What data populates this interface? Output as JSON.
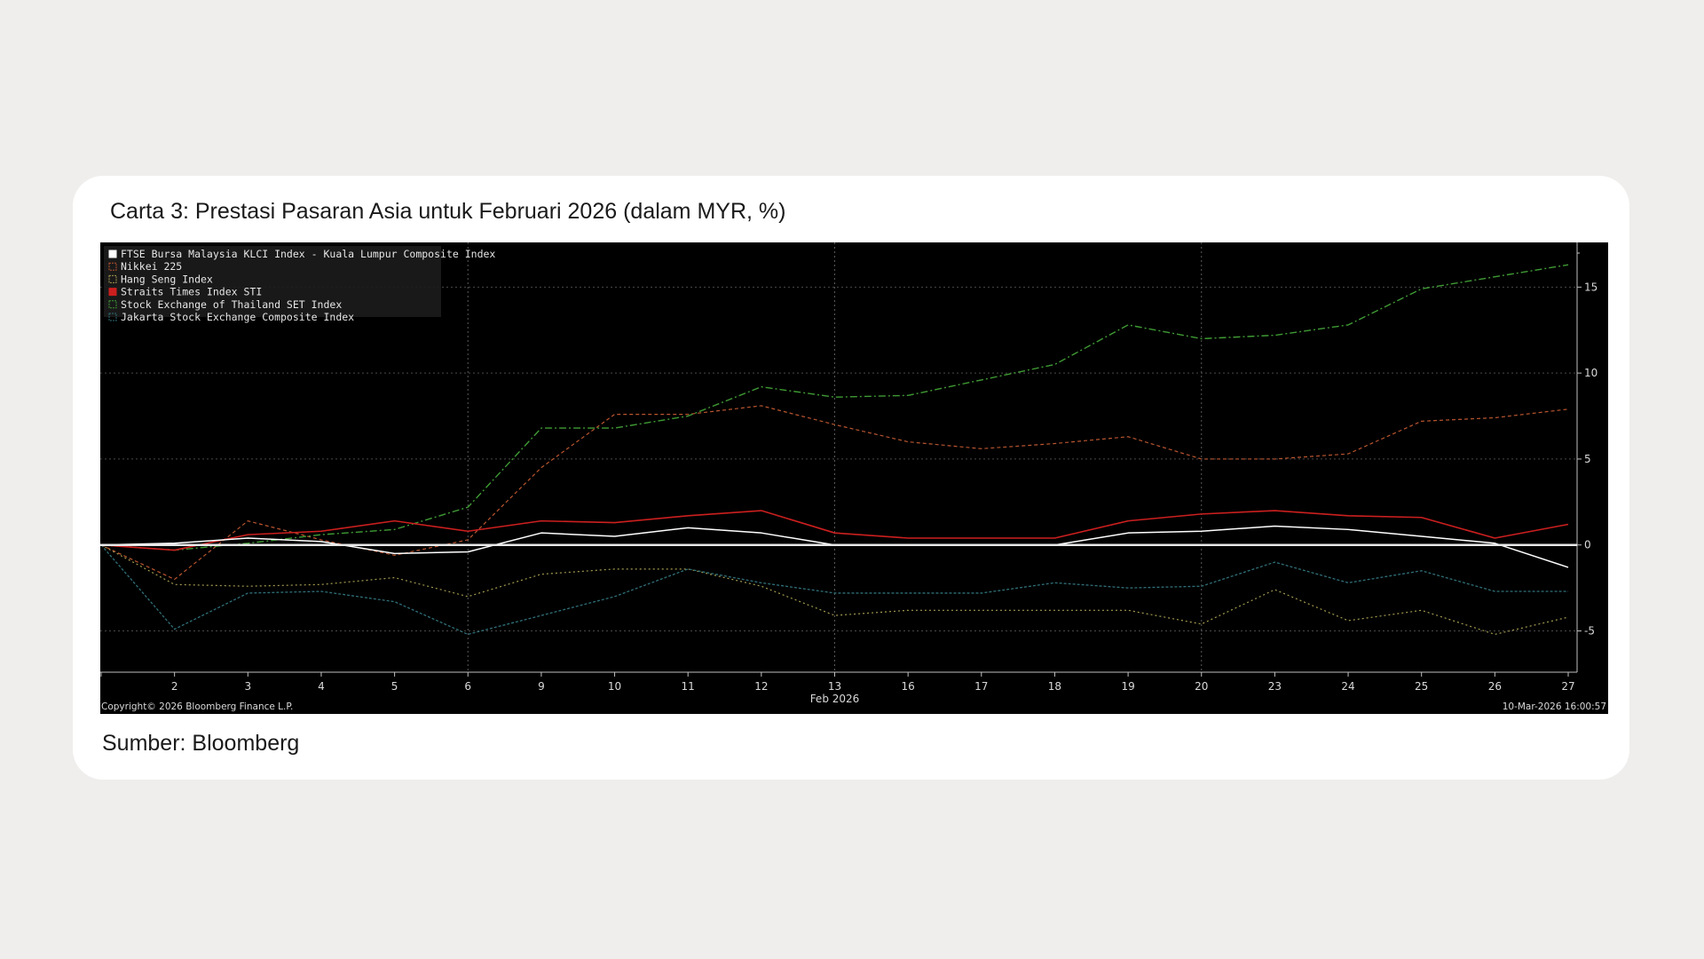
{
  "page": {
    "title": "Carta 3: Prestasi Pasaran Asia untuk Februari 2026 (dalam MYR, %)",
    "source": "Sumber: Bloomberg"
  },
  "chart_data": {
    "type": "line",
    "title": "",
    "xlabel": "Feb 2026",
    "ylabel": "",
    "x": [
      "1",
      "2",
      "3",
      "4",
      "5",
      "6",
      "9",
      "10",
      "11",
      "12",
      "13",
      "16",
      "17",
      "18",
      "19",
      "20",
      "23",
      "24",
      "25",
      "26",
      "27"
    ],
    "x_tick_labels": [
      "2",
      "3",
      "4",
      "5",
      "6",
      "9",
      "10",
      "11",
      "12",
      "13",
      "16",
      "17",
      "18",
      "19",
      "20",
      "23",
      "24",
      "25",
      "26",
      "27"
    ],
    "y_ticks": [
      15,
      10,
      5,
      0,
      -5
    ],
    "y_tick_labels": [
      "15",
      "10",
      "5",
      "0",
      "-5"
    ],
    "ylim": [
      -7.4,
      17.6
    ],
    "grid": true,
    "legend_position": "top-left",
    "copyright": "Copyright© 2026 Bloomberg Finance L.P.",
    "timestamp": "10-Mar-2026 16:00:57",
    "series": [
      {
        "name": "FTSE Bursa Malaysia KLCI Index - Kuala Lumpur Composite Index",
        "color": "#ffffff",
        "dash": "",
        "width": 1.5,
        "values": [
          0,
          0.1,
          0.4,
          0.2,
          -0.5,
          -0.4,
          0.7,
          0.5,
          1.0,
          0.7,
          0.0,
          0.0,
          0.0,
          0.0,
          0.7,
          0.8,
          1.1,
          0.9,
          0.5,
          0.1,
          -1.3
        ]
      },
      {
        "name": "Nikkei 225",
        "color": "#b9552f",
        "dash": "4,3",
        "width": 1.2,
        "values": [
          0,
          -2.0,
          1.4,
          0.3,
          -0.6,
          0.3,
          4.5,
          7.6,
          7.6,
          8.1,
          7.0,
          6.0,
          5.6,
          5.9,
          6.3,
          5.0,
          5.0,
          5.3,
          7.2,
          7.4,
          7.9
        ]
      },
      {
        "name": "Hang Seng Index",
        "color": "#a39a4e",
        "dash": "2,3",
        "width": 1.2,
        "values": [
          0,
          -2.3,
          -2.4,
          -2.3,
          -1.9,
          -3.0,
          -1.7,
          -1.4,
          -1.4,
          -2.4,
          -4.1,
          -3.8,
          -3.8,
          -3.8,
          -3.8,
          -4.6,
          -2.6,
          -4.4,
          -3.8,
          -5.2,
          -4.2
        ]
      },
      {
        "name": "Straits Times Index STI",
        "color": "#cc1f1f",
        "dash": "",
        "width": 1.6,
        "values": [
          0,
          -0.3,
          0.6,
          0.8,
          1.4,
          0.8,
          1.4,
          1.3,
          1.7,
          2.0,
          0.7,
          0.4,
          0.4,
          0.4,
          1.4,
          1.8,
          2.0,
          1.7,
          1.6,
          0.4,
          1.2
        ]
      },
      {
        "name": "Stock Exchange of Thailand SET Index",
        "color": "#3f9a34",
        "dash": "8,3,2,3",
        "width": 1.4,
        "values": [
          0,
          -0.3,
          0.1,
          0.6,
          0.9,
          2.2,
          6.8,
          6.8,
          7.5,
          9.2,
          8.6,
          8.7,
          9.6,
          10.5,
          12.8,
          12.0,
          12.2,
          12.8,
          14.9,
          15.6,
          16.3
        ]
      },
      {
        "name": "Jakarta Stock Exchange Composite Index",
        "color": "#2f6f78",
        "dash": "3,2",
        "width": 1.3,
        "values": [
          0,
          -4.9,
          -2.8,
          -2.7,
          -3.3,
          -5.2,
          -4.1,
          -3.0,
          -1.4,
          -2.2,
          -2.8,
          -2.8,
          -2.8,
          -2.2,
          -2.5,
          -2.4,
          -1.0,
          -2.2,
          -1.5,
          -2.7,
          -2.7
        ]
      }
    ]
  }
}
